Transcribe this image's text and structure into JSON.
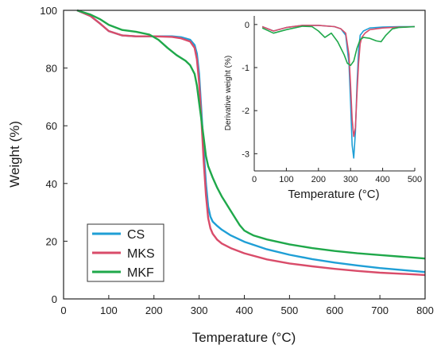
{
  "chart_data": [
    {
      "type": "line",
      "xlabel": "Temperature (°C)",
      "ylabel": "Weight (%)",
      "xlim": [
        0,
        800
      ],
      "ylim": [
        0,
        100
      ],
      "xticks": [
        0,
        100,
        200,
        300,
        400,
        500,
        600,
        700,
        800
      ],
      "yticks": [
        0,
        20,
        40,
        60,
        80,
        100
      ],
      "legend": "bottom-left",
      "series": [
        {
          "name": "CS",
          "color": "#1f9fd6",
          "x": [
            30,
            60,
            80,
            100,
            130,
            160,
            200,
            240,
            260,
            280,
            290,
            295,
            300,
            305,
            310,
            315,
            320,
            325,
            330,
            340,
            350,
            370,
            400,
            450,
            500,
            550,
            600,
            650,
            700,
            750,
            800
          ],
          "y": [
            100,
            98,
            95.5,
            92.8,
            91.3,
            91.0,
            91.0,
            91.0,
            90.7,
            89.8,
            88.0,
            85.0,
            78.0,
            65.0,
            52.0,
            40.0,
            32.0,
            28.5,
            26.8,
            25.3,
            24.0,
            22.0,
            19.8,
            17.2,
            15.3,
            13.8,
            12.6,
            11.6,
            10.7,
            10.0,
            9.3
          ]
        },
        {
          "name": "MKS",
          "color": "#d94c6a",
          "x": [
            30,
            60,
            80,
            100,
            130,
            160,
            200,
            240,
            260,
            280,
            290,
            295,
            300,
            305,
            310,
            315,
            320,
            325,
            330,
            340,
            350,
            370,
            400,
            450,
            500,
            550,
            600,
            650,
            700,
            750,
            800
          ],
          "y": [
            100,
            98,
            95.5,
            92.8,
            91.3,
            91.0,
            91.0,
            90.8,
            90.3,
            89.2,
            87.0,
            83.0,
            75.0,
            62.0,
            48.0,
            36.0,
            28.0,
            24.5,
            22.6,
            20.5,
            19.2,
            17.6,
            15.8,
            13.7,
            12.3,
            11.3,
            10.4,
            9.7,
            9.1,
            8.7,
            8.3
          ]
        },
        {
          "name": "MKF",
          "color": "#1fa84a",
          "x": [
            30,
            60,
            80,
            100,
            130,
            160,
            190,
            210,
            230,
            250,
            270,
            280,
            290,
            295,
            300,
            305,
            310,
            315,
            320,
            330,
            340,
            350,
            360,
            370,
            380,
            390,
            400,
            410,
            420,
            450,
            500,
            550,
            600,
            650,
            700,
            750,
            800
          ],
          "y": [
            100,
            98.5,
            97.0,
            95.0,
            93.2,
            92.6,
            91.6,
            89.8,
            87.0,
            84.5,
            82.5,
            81.0,
            78.0,
            74.0,
            68.0,
            62.0,
            56.0,
            49.5,
            46.0,
            42.0,
            38.5,
            35.5,
            33.0,
            30.5,
            28.0,
            25.5,
            23.7,
            22.8,
            22.0,
            20.6,
            18.9,
            17.6,
            16.6,
            15.8,
            15.2,
            14.6,
            14.0
          ]
        }
      ]
    },
    {
      "type": "line",
      "xlabel": "Temperature (°C)",
      "ylabel": "Derivative weight (%)",
      "xlim": [
        0,
        500
      ],
      "ylim": [
        -3.4,
        0.2
      ],
      "xticks": [
        0,
        100,
        200,
        300,
        400,
        500
      ],
      "yticks": [
        0,
        -1,
        -2,
        -3
      ],
      "series": [
        {
          "name": "CS",
          "color": "#1f9fd6",
          "x": [
            25,
            60,
            100,
            150,
            200,
            250,
            270,
            285,
            295,
            300,
            305,
            310,
            315,
            320,
            325,
            330,
            340,
            360,
            400,
            450,
            500
          ],
          "y": [
            -0.05,
            -0.15,
            -0.07,
            -0.02,
            -0.02,
            -0.05,
            -0.1,
            -0.25,
            -0.9,
            -1.8,
            -2.8,
            -3.1,
            -2.5,
            -1.4,
            -0.6,
            -0.25,
            -0.15,
            -0.08,
            -0.06,
            -0.05,
            -0.05
          ]
        },
        {
          "name": "MKS",
          "color": "#d94c6a",
          "x": [
            25,
            60,
            100,
            150,
            200,
            250,
            270,
            285,
            295,
            300,
            305,
            310,
            315,
            320,
            325,
            330,
            335,
            345,
            360,
            400,
            450,
            500
          ],
          "y": [
            -0.05,
            -0.15,
            -0.07,
            -0.02,
            -0.02,
            -0.05,
            -0.1,
            -0.2,
            -0.7,
            -1.4,
            -2.2,
            -2.6,
            -2.4,
            -1.6,
            -0.9,
            -0.45,
            -0.3,
            -0.2,
            -0.12,
            -0.08,
            -0.06,
            -0.05
          ]
        },
        {
          "name": "MKF",
          "color": "#1fa84a",
          "x": [
            25,
            60,
            100,
            150,
            180,
            200,
            220,
            240,
            260,
            280,
            290,
            300,
            310,
            320,
            330,
            340,
            360,
            380,
            395,
            410,
            430,
            450,
            500
          ],
          "y": [
            -0.08,
            -0.2,
            -0.12,
            -0.04,
            -0.05,
            -0.15,
            -0.3,
            -0.2,
            -0.4,
            -0.7,
            -0.9,
            -0.95,
            -0.85,
            -0.55,
            -0.35,
            -0.3,
            -0.32,
            -0.38,
            -0.4,
            -0.25,
            -0.1,
            -0.07,
            -0.05
          ]
        }
      ]
    }
  ]
}
